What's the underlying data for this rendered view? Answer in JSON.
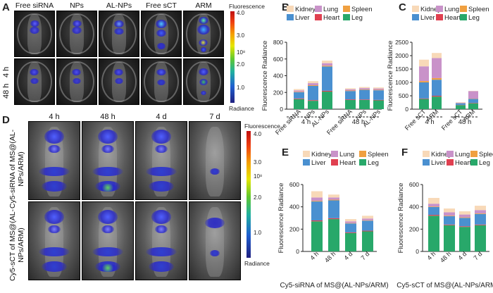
{
  "panelA": {
    "letter": "A",
    "columns": [
      "Free siRNA",
      "NPs",
      "AL-NPs",
      "Free sCT",
      "ARM"
    ],
    "rows": [
      "4 h",
      "48 h"
    ]
  },
  "panelD": {
    "letter": "D",
    "columns": [
      "4 h",
      "48 h",
      "4 d",
      "7 d"
    ],
    "rows": [
      "Cy5-siRNA of MS@(AL-NPs/ARM)",
      "Cy5-sCT of MS@(AL-NPs/ARM)"
    ]
  },
  "colorbar": {
    "title": "Fluorescence",
    "bottom": "Radiance",
    "ticks": [
      "4.0",
      "3.0",
      "2.0",
      "1.0"
    ],
    "exponent": "10⁸"
  },
  "legend": {
    "items": [
      {
        "name": "Kidney",
        "color": "#f8d9b8"
      },
      {
        "name": "Lung",
        "color": "#c992c9"
      },
      {
        "name": "Spleen",
        "color": "#f0a040"
      },
      {
        "name": "Liver",
        "color": "#4a90d0"
      },
      {
        "name": "Heart",
        "color": "#e04050"
      },
      {
        "name": "Leg",
        "color": "#28a86a"
      }
    ]
  },
  "chart_data": [
    {
      "panel": "B",
      "type": "bar",
      "stacked": true,
      "ylabel": "Fluorescence Radiance",
      "ylim": [
        0,
        800
      ],
      "yticks": [
        0,
        200,
        400,
        600,
        800
      ],
      "categories": [
        "Free siRNA",
        "NPs",
        "AL-NPs",
        "Free siRNA",
        "NPs",
        "AL-NPs"
      ],
      "groups": [
        "4 h",
        "48 h"
      ],
      "series": [
        {
          "name": "Leg",
          "values": [
            120,
            100,
            210,
            110,
            110,
            105
          ]
        },
        {
          "name": "Heart",
          "values": [
            8,
            8,
            10,
            7,
            6,
            6
          ]
        },
        {
          "name": "Liver",
          "values": [
            75,
            170,
            290,
            100,
            115,
            115
          ]
        },
        {
          "name": "Spleen",
          "values": [
            6,
            8,
            10,
            6,
            6,
            6
          ]
        },
        {
          "name": "Lung",
          "values": [
            15,
            25,
            30,
            15,
            15,
            15
          ]
        },
        {
          "name": "Kidney",
          "values": [
            16,
            24,
            30,
            12,
            13,
            13
          ]
        }
      ]
    },
    {
      "panel": "C",
      "type": "bar",
      "stacked": true,
      "ylabel": "Fluorescence Radiance",
      "ylim": [
        0,
        2500
      ],
      "yticks": [
        0,
        500,
        1000,
        1500,
        2000,
        2500
      ],
      "categories": [
        "Free sCT",
        "ARM",
        "Free sCT",
        "ARM"
      ],
      "groups": [
        "4 h",
        "48 h"
      ],
      "series": [
        {
          "name": "Leg",
          "values": [
            380,
            470,
            150,
            220
          ]
        },
        {
          "name": "Heart",
          "values": [
            20,
            30,
            10,
            15
          ]
        },
        {
          "name": "Liver",
          "values": [
            600,
            600,
            60,
            150
          ]
        },
        {
          "name": "Spleen",
          "values": [
            50,
            60,
            5,
            10
          ]
        },
        {
          "name": "Lung",
          "values": [
            550,
            750,
            20,
            280
          ]
        },
        {
          "name": "Kidney",
          "values": [
            250,
            190,
            15,
            10
          ]
        }
      ]
    },
    {
      "panel": "E",
      "type": "bar",
      "stacked": true,
      "ylabel": "Fluorescence Radiance",
      "xlabel": "Cy5-siRNA of MS@(AL-NPs/ARM)",
      "ylim": [
        0,
        600
      ],
      "yticks": [
        0,
        200,
        400,
        600
      ],
      "categories": [
        "4 h",
        "48 h",
        "4 d",
        "7 d"
      ],
      "series": [
        {
          "name": "Leg",
          "values": [
            270,
            290,
            165,
            180
          ]
        },
        {
          "name": "Heart",
          "values": [
            8,
            8,
            6,
            6
          ]
        },
        {
          "name": "Liver",
          "values": [
            170,
            160,
            80,
            90
          ]
        },
        {
          "name": "Spleen",
          "values": [
            6,
            6,
            4,
            4
          ]
        },
        {
          "name": "Lung",
          "values": [
            30,
            20,
            15,
            15
          ]
        },
        {
          "name": "Kidney",
          "values": [
            56,
            26,
            20,
            25
          ]
        }
      ]
    },
    {
      "panel": "F",
      "type": "bar",
      "stacked": true,
      "ylabel": "Fluorescence Radiance",
      "xlabel": "Cy5-sCT of MS@(AL-NPs/ARM)",
      "ylim": [
        0,
        600
      ],
      "yticks": [
        0,
        200,
        400,
        600
      ],
      "categories": [
        "4 h",
        "48 h",
        "4 d",
        "7 d"
      ],
      "series": [
        {
          "name": "Leg",
          "values": [
            320,
            235,
            220,
            235
          ]
        },
        {
          "name": "Heart",
          "values": [
            8,
            6,
            6,
            6
          ]
        },
        {
          "name": "Liver",
          "values": [
            70,
            75,
            75,
            95
          ]
        },
        {
          "name": "Spleen",
          "values": [
            5,
            5,
            5,
            5
          ]
        },
        {
          "name": "Lung",
          "values": [
            25,
            30,
            25,
            30
          ]
        },
        {
          "name": "Kidney",
          "values": [
            52,
            34,
            29,
            39
          ]
        }
      ]
    }
  ]
}
